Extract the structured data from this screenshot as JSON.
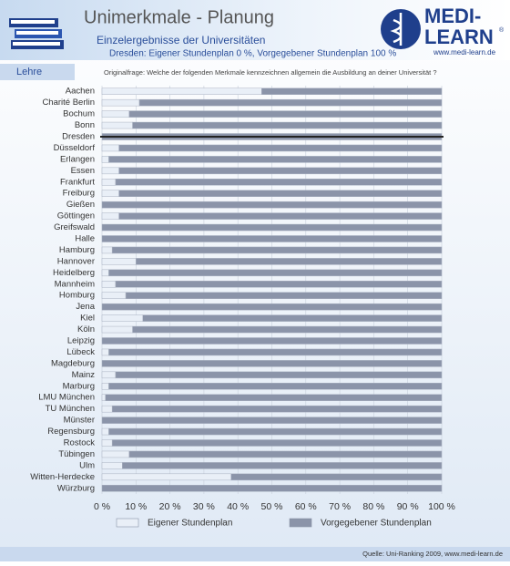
{
  "header": {
    "title": "Unimerkmale - Planung",
    "subtitle": "Einzelergebnisse der Universitäten",
    "highlight_text": "Dresden: Eigener Stundenplan 0 %, Vorgegebener Stundenplan 100 %",
    "section": "Lehre",
    "question": "Originalfrage: Welche der folgenden Merkmale kennzeichnen allgemein die Ausbildung an deiner Universität ?",
    "logo_top": "MEDI-",
    "logo_bottom": "LEARN",
    "logo_mark": "®",
    "logo_url": "www.medi-learn.de"
  },
  "footer": {
    "source": "Quelle: Uni-Ranking 2009, www.medi-learn.de"
  },
  "chart_data": {
    "type": "stacked-barh",
    "categories": [
      "Aachen",
      "Charité Berlin",
      "Bochum",
      "Bonn",
      "Dresden",
      "Düsseldorf",
      "Erlangen",
      "Essen",
      "Frankfurt",
      "Freiburg",
      "Gießen",
      "Göttingen",
      "Greifswald",
      "Halle",
      "Hamburg",
      "Hannover",
      "Heidelberg",
      "Mannheim",
      "Homburg",
      "Jena",
      "Kiel",
      "Köln",
      "Leipzig",
      "Lübeck",
      "Magdeburg",
      "Mainz",
      "Marburg",
      "LMU München",
      "TU München",
      "Münster",
      "Regensburg",
      "Rostock",
      "Tübingen",
      "Ulm",
      "Witten-Herdecke",
      "Würzburg"
    ],
    "series": [
      {
        "name": "Eigener Stundenplan",
        "color": "#e9eff7",
        "values": [
          47,
          11,
          8,
          9,
          0,
          5,
          2,
          5,
          4,
          5,
          0,
          5,
          0,
          0,
          3,
          10,
          2,
          4,
          7,
          0,
          12,
          9,
          0,
          2,
          0,
          4,
          2,
          1,
          3,
          0,
          2,
          3,
          8,
          6,
          38,
          0
        ]
      },
      {
        "name": "Vorgegebener Stundenplan",
        "color": "#8b94a9",
        "values": [
          53,
          89,
          92,
          91,
          100,
          95,
          98,
          95,
          96,
          95,
          100,
          95,
          100,
          100,
          97,
          90,
          98,
          96,
          93,
          100,
          88,
          91,
          100,
          98,
          100,
          96,
          98,
          99,
          97,
          100,
          98,
          97,
          92,
          94,
          62,
          100
        ]
      }
    ],
    "highlight": "Dresden",
    "xlim": [
      0,
      100
    ],
    "xticks": [
      {
        "value": 0,
        "label": "0 %"
      },
      {
        "value": 10,
        "label": "10 %"
      },
      {
        "value": 20,
        "label": "20 %"
      },
      {
        "value": 30,
        "label": "30 %"
      },
      {
        "value": 40,
        "label": "40 %"
      },
      {
        "value": 50,
        "label": "50 %"
      },
      {
        "value": 60,
        "label": "60 %"
      },
      {
        "value": 70,
        "label": "70 %"
      },
      {
        "value": 80,
        "label": "80 %"
      },
      {
        "value": 90,
        "label": "90 %"
      },
      {
        "value": 100,
        "label": "100 %"
      }
    ],
    "grid": true
  }
}
